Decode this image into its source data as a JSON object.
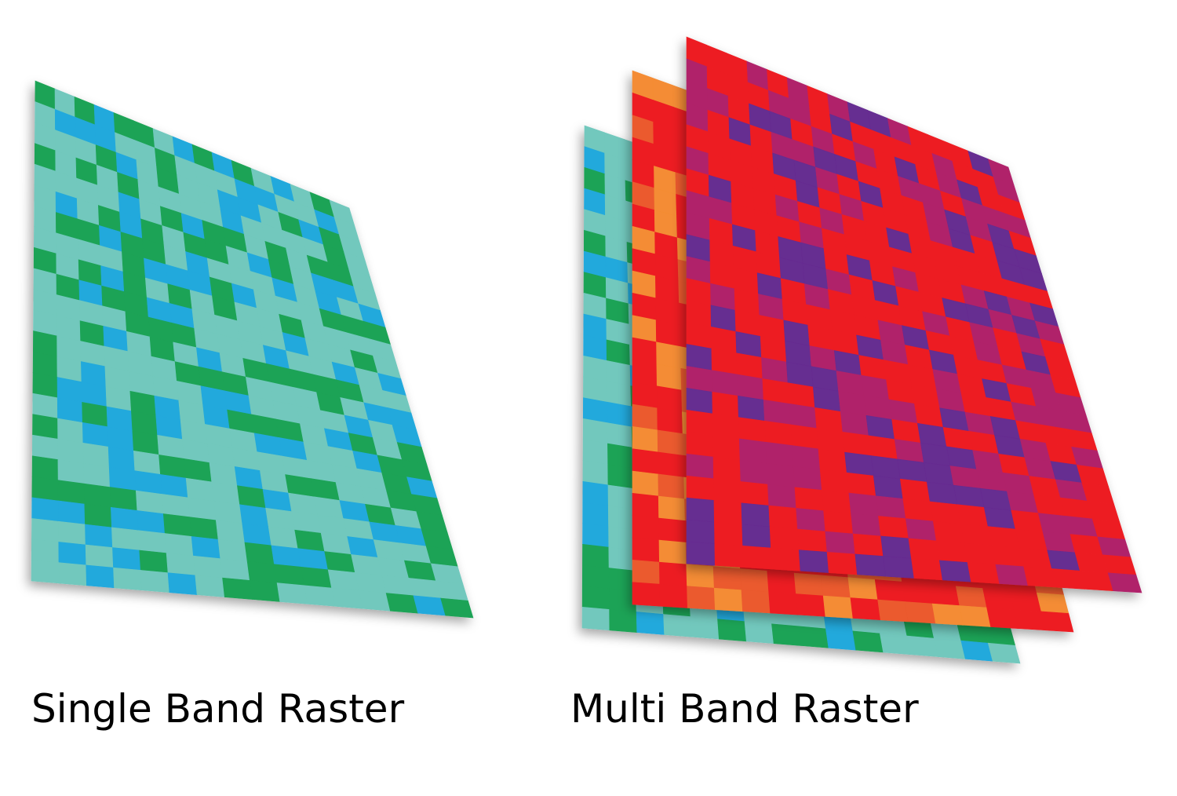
{
  "panels": [
    {
      "label": "Single Band Raster"
    },
    {
      "label": "Multi Band Raster"
    }
  ]
}
